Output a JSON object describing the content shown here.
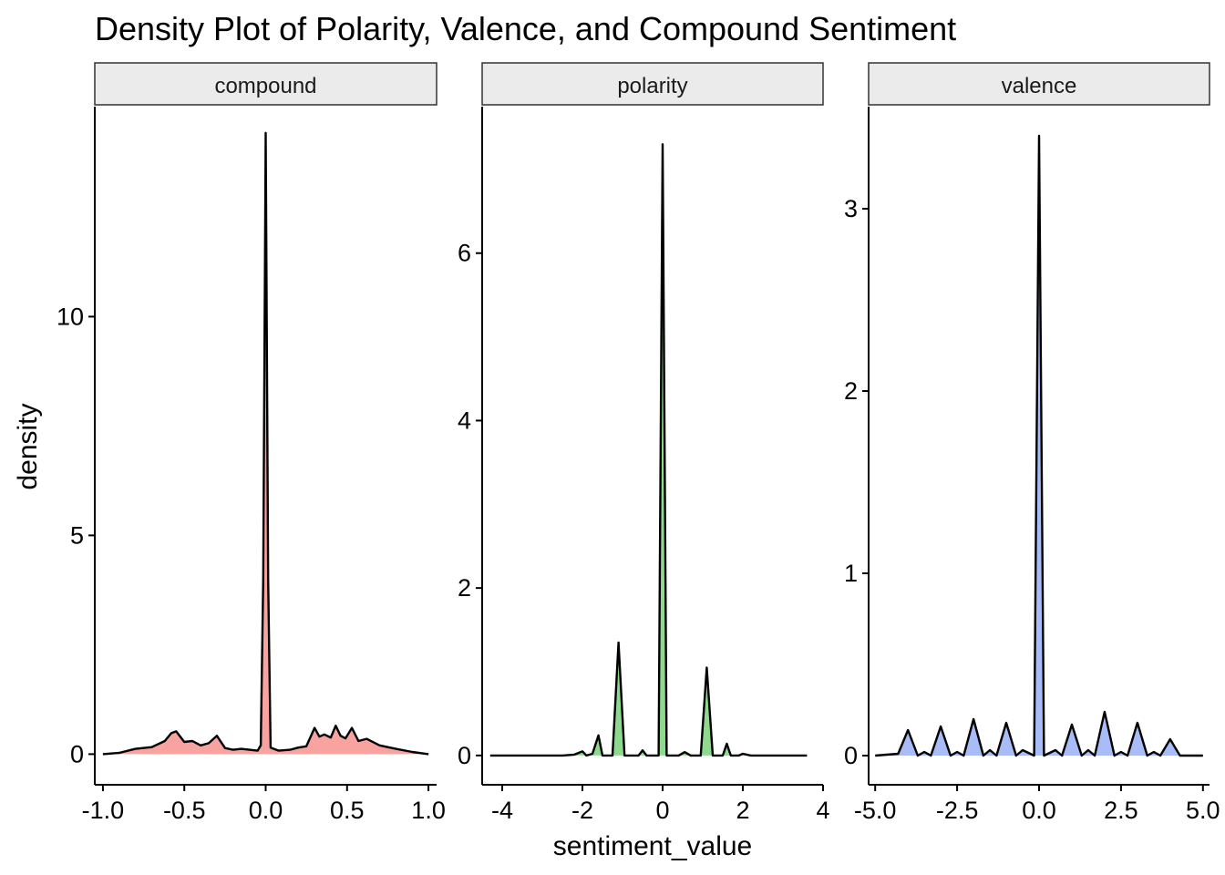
{
  "chart_data": {
    "type": "area",
    "title": "Density Plot of Polarity, Valence, and Compound Sentiment",
    "xlabel": "sentiment_value",
    "ylabel": "density",
    "grid": false,
    "legend": "none",
    "panels": [
      {
        "name": "compound",
        "fill": "#F8A3A0",
        "xlim": [
          -1.05,
          1.05
        ],
        "ylim": [
          -0.7,
          14.8
        ],
        "xticks": [
          -1.0,
          -0.5,
          0.0,
          0.5,
          1.0
        ],
        "xtick_labels": [
          "-1.0",
          "-0.5",
          "0.0",
          "0.5",
          "1.0"
        ],
        "yticks": [
          0,
          5,
          10
        ],
        "ytick_labels": [
          "0",
          "5",
          "10"
        ],
        "points": [
          [
            -1.0,
            0.0
          ],
          [
            -0.9,
            0.03
          ],
          [
            -0.8,
            0.12
          ],
          [
            -0.7,
            0.16
          ],
          [
            -0.62,
            0.3
          ],
          [
            -0.58,
            0.48
          ],
          [
            -0.55,
            0.52
          ],
          [
            -0.5,
            0.28
          ],
          [
            -0.45,
            0.3
          ],
          [
            -0.4,
            0.2
          ],
          [
            -0.35,
            0.25
          ],
          [
            -0.3,
            0.42
          ],
          [
            -0.25,
            0.14
          ],
          [
            -0.2,
            0.1
          ],
          [
            -0.15,
            0.12
          ],
          [
            -0.1,
            0.1
          ],
          [
            -0.05,
            0.08
          ],
          [
            -0.03,
            0.2
          ],
          [
            -0.015,
            4.0
          ],
          [
            0.0,
            14.2
          ],
          [
            0.015,
            4.0
          ],
          [
            0.03,
            0.15
          ],
          [
            0.08,
            0.08
          ],
          [
            0.15,
            0.1
          ],
          [
            0.2,
            0.15
          ],
          [
            0.25,
            0.18
          ],
          [
            0.3,
            0.6
          ],
          [
            0.33,
            0.4
          ],
          [
            0.36,
            0.45
          ],
          [
            0.4,
            0.38
          ],
          [
            0.43,
            0.65
          ],
          [
            0.46,
            0.42
          ],
          [
            0.49,
            0.36
          ],
          [
            0.53,
            0.6
          ],
          [
            0.57,
            0.3
          ],
          [
            0.62,
            0.35
          ],
          [
            0.7,
            0.2
          ],
          [
            0.8,
            0.12
          ],
          [
            0.9,
            0.05
          ],
          [
            1.0,
            0.0
          ]
        ]
      },
      {
        "name": "polarity",
        "fill": "#8FD98F",
        "xlim": [
          -4.5,
          4.0
        ],
        "ylim": [
          -0.35,
          7.75
        ],
        "xticks": [
          -4,
          -2,
          0,
          2,
          4
        ],
        "xtick_labels": [
          "-4",
          "-2",
          "0",
          "2",
          "4"
        ],
        "yticks": [
          0,
          2,
          4,
          6
        ],
        "ytick_labels": [
          "0",
          "2",
          "4",
          "6"
        ],
        "points": [
          [
            -4.3,
            0.0
          ],
          [
            -2.5,
            0.0
          ],
          [
            -2.2,
            0.01
          ],
          [
            -2.0,
            0.05
          ],
          [
            -1.9,
            0.0
          ],
          [
            -1.75,
            0.02
          ],
          [
            -1.6,
            0.24
          ],
          [
            -1.5,
            0.0
          ],
          [
            -1.25,
            0.0
          ],
          [
            -1.1,
            1.35
          ],
          [
            -0.95,
            0.0
          ],
          [
            -0.6,
            0.0
          ],
          [
            -0.5,
            0.06
          ],
          [
            -0.4,
            0.0
          ],
          [
            -0.1,
            0.0
          ],
          [
            0.0,
            7.3
          ],
          [
            0.1,
            0.0
          ],
          [
            0.4,
            0.0
          ],
          [
            0.55,
            0.04
          ],
          [
            0.7,
            0.0
          ],
          [
            0.95,
            0.0
          ],
          [
            1.1,
            1.05
          ],
          [
            1.25,
            0.0
          ],
          [
            1.5,
            0.0
          ],
          [
            1.6,
            0.14
          ],
          [
            1.7,
            0.0
          ],
          [
            1.9,
            0.0
          ],
          [
            2.0,
            0.02
          ],
          [
            2.2,
            0.0
          ],
          [
            3.6,
            0.0
          ]
        ]
      },
      {
        "name": "valence",
        "fill": "#A8BDF7",
        "xlim": [
          -5.2,
          5.2
        ],
        "ylim": [
          -0.16,
          3.56
        ],
        "xticks": [
          -5.0,
          -2.5,
          0.0,
          2.5,
          5.0
        ],
        "xtick_labels": [
          "-5.0",
          "-2.5",
          "0.0",
          "2.5",
          "5.0"
        ],
        "yticks": [
          0,
          1,
          2,
          3
        ],
        "ytick_labels": [
          "0",
          "1",
          "2",
          "3"
        ],
        "points": [
          [
            -5.0,
            0.0
          ],
          [
            -4.3,
            0.01
          ],
          [
            -4.0,
            0.14
          ],
          [
            -3.7,
            0.0
          ],
          [
            -3.5,
            0.02
          ],
          [
            -3.3,
            0.0
          ],
          [
            -3.0,
            0.16
          ],
          [
            -2.7,
            0.0
          ],
          [
            -2.5,
            0.02
          ],
          [
            -2.3,
            0.0
          ],
          [
            -2.0,
            0.2
          ],
          [
            -1.7,
            0.0
          ],
          [
            -1.5,
            0.03
          ],
          [
            -1.3,
            0.0
          ],
          [
            -1.0,
            0.18
          ],
          [
            -0.7,
            0.0
          ],
          [
            -0.5,
            0.03
          ],
          [
            -0.15,
            0.0
          ],
          [
            0.0,
            3.4
          ],
          [
            0.15,
            0.0
          ],
          [
            0.5,
            0.03
          ],
          [
            0.7,
            0.0
          ],
          [
            1.0,
            0.17
          ],
          [
            1.3,
            0.0
          ],
          [
            1.5,
            0.03
          ],
          [
            1.7,
            0.0
          ],
          [
            2.0,
            0.24
          ],
          [
            2.3,
            0.0
          ],
          [
            2.5,
            0.02
          ],
          [
            2.7,
            0.0
          ],
          [
            3.0,
            0.18
          ],
          [
            3.3,
            0.0
          ],
          [
            3.5,
            0.02
          ],
          [
            3.7,
            0.0
          ],
          [
            4.0,
            0.09
          ],
          [
            4.3,
            0.0
          ],
          [
            5.0,
            0.0
          ]
        ]
      }
    ]
  }
}
